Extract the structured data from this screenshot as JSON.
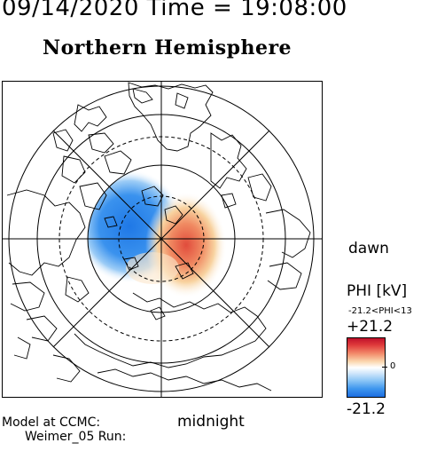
{
  "header": {
    "datetime": "09/14/2020 Time = 19:08:00",
    "hemisphere": "Northern Hemisphere"
  },
  "map": {
    "projection": "polar",
    "orientation_label_right": "dawn",
    "orientation_label_bottom": "midnight",
    "potential_pattern": {
      "negative_cell_color": "#2a86ea",
      "positive_cell_color": "#e8584a"
    }
  },
  "legend": {
    "quantity": "PHI [kV]",
    "range_text": "-21.2<PHI<13",
    "max": "+21.2",
    "zero": "0",
    "min": "-21.2",
    "colors": {
      "top": "#c0102a",
      "middle": "#ffffff",
      "bottom": "#1c6de0"
    }
  },
  "footer": {
    "model": "Model at CCMC:",
    "run": "Weimer_05 Run:"
  }
}
